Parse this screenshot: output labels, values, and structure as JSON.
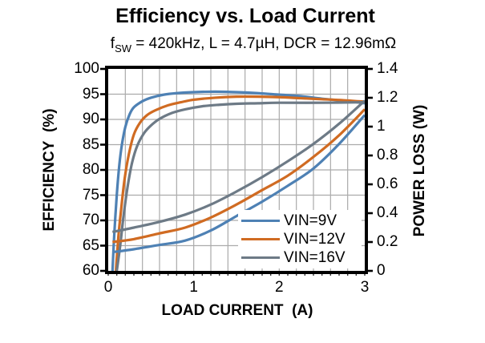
{
  "chart_data": {
    "type": "line",
    "title": "Efficiency vs. Load Current",
    "subtitle": {
      "pre": "f",
      "sub": "SW",
      "post": " = 420kHz, L = 4.7µH, DCR = 12.96mΩ"
    },
    "xlabel": "LOAD CURRENT  (A)",
    "xlim": [
      0,
      3
    ],
    "x_tick_values": [
      0,
      1,
      2,
      3
    ],
    "x_tick_labels": [
      "0",
      "1",
      "2",
      "3"
    ],
    "x_grid_step": 0.2,
    "x_minor_tick_step": 0.1,
    "grid": true,
    "grid_color": "#ABABAB",
    "frame_color": "#000000",
    "left_axis": {
      "label": "EFFICIENCY  (%)",
      "lim": [
        60,
        100
      ],
      "tick_values": [
        60,
        65,
        70,
        75,
        80,
        85,
        90,
        95,
        100
      ],
      "tick_labels": [
        "60",
        "65",
        "70",
        "75",
        "80",
        "85",
        "90",
        "95",
        "100"
      ],
      "grid_step": 5
    },
    "right_axis": {
      "label": "POWER LOSS (W)",
      "lim": [
        0,
        1.4
      ],
      "tick_values": [
        0,
        0.2,
        0.4,
        0.6,
        0.8,
        1.0,
        1.2,
        1.4
      ],
      "tick_labels": [
        "0",
        "0.2",
        "0.4",
        "0.6",
        "0.8",
        "1",
        "1.2",
        "1.4"
      ]
    },
    "legend": {
      "position": "inside-bottom-right",
      "entries": [
        {
          "label": "VIN=9V",
          "color": "#4E81B4"
        },
        {
          "label": "VIN=12V",
          "color": "#D06B22"
        },
        {
          "label": "VIN=16V",
          "color": "#6D7A86"
        }
      ]
    },
    "series": [
      {
        "name": "VIN=9V efficiency",
        "axis": "left",
        "color": "#4E81B4",
        "points": [
          [
            0.05,
            60
          ],
          [
            0.07,
            67
          ],
          [
            0.1,
            75
          ],
          [
            0.13,
            81
          ],
          [
            0.16,
            85
          ],
          [
            0.2,
            88.5
          ],
          [
            0.25,
            91
          ],
          [
            0.3,
            92.4
          ],
          [
            0.4,
            93.6
          ],
          [
            0.5,
            94.3
          ],
          [
            0.65,
            94.9
          ],
          [
            0.8,
            95.2
          ],
          [
            1.0,
            95.4
          ],
          [
            1.25,
            95.5
          ],
          [
            1.5,
            95.4
          ],
          [
            1.75,
            95.2
          ],
          [
            2.0,
            94.9
          ],
          [
            2.25,
            94.6
          ],
          [
            2.5,
            94.1
          ],
          [
            2.75,
            93.7
          ],
          [
            3.0,
            93.2
          ]
        ]
      },
      {
        "name": "VIN=12V efficiency",
        "axis": "left",
        "color": "#D06B22",
        "points": [
          [
            0.09,
            60
          ],
          [
            0.12,
            67
          ],
          [
            0.15,
            72
          ],
          [
            0.19,
            78
          ],
          [
            0.24,
            83
          ],
          [
            0.3,
            87
          ],
          [
            0.37,
            89.3
          ],
          [
            0.45,
            90.8
          ],
          [
            0.55,
            91.8
          ],
          [
            0.7,
            92.8
          ],
          [
            0.85,
            93.4
          ],
          [
            1.0,
            93.9
          ],
          [
            1.25,
            94.3
          ],
          [
            1.5,
            94.5
          ],
          [
            1.75,
            94.5
          ],
          [
            2.0,
            94.4
          ],
          [
            2.25,
            94.2
          ],
          [
            2.5,
            94.0
          ],
          [
            2.75,
            93.8
          ],
          [
            3.0,
            93.5
          ]
        ]
      },
      {
        "name": "VIN=16V efficiency",
        "axis": "left",
        "color": "#6D7A86",
        "points": [
          [
            0.1,
            60
          ],
          [
            0.14,
            65
          ],
          [
            0.18,
            71
          ],
          [
            0.23,
            77
          ],
          [
            0.28,
            81.5
          ],
          [
            0.34,
            84.8
          ],
          [
            0.42,
            87.3
          ],
          [
            0.5,
            88.8
          ],
          [
            0.6,
            90.1
          ],
          [
            0.75,
            91.3
          ],
          [
            0.9,
            92.0
          ],
          [
            1.1,
            92.6
          ],
          [
            1.3,
            92.9
          ],
          [
            1.5,
            93.1
          ],
          [
            1.75,
            93.2
          ],
          [
            2.0,
            93.3
          ],
          [
            2.5,
            93.3
          ],
          [
            3.0,
            93.4
          ]
        ]
      },
      {
        "name": "VIN=9V power loss",
        "axis": "right",
        "color": "#4E81B4",
        "points": [
          [
            0.05,
            0.13
          ],
          [
            0.3,
            0.15
          ],
          [
            0.6,
            0.18
          ],
          [
            0.9,
            0.21
          ],
          [
            1.2,
            0.28
          ],
          [
            1.5,
            0.38
          ],
          [
            1.8,
            0.48
          ],
          [
            2.1,
            0.59
          ],
          [
            2.4,
            0.71
          ],
          [
            2.7,
            0.88
          ],
          [
            3.0,
            1.08
          ]
        ]
      },
      {
        "name": "VIN=12V power loss",
        "axis": "right",
        "color": "#D06B22",
        "points": [
          [
            0.05,
            0.2
          ],
          [
            0.3,
            0.22
          ],
          [
            0.6,
            0.26
          ],
          [
            0.9,
            0.3
          ],
          [
            1.2,
            0.37
          ],
          [
            1.5,
            0.46
          ],
          [
            1.8,
            0.56
          ],
          [
            2.1,
            0.66
          ],
          [
            2.4,
            0.79
          ],
          [
            2.7,
            0.94
          ],
          [
            3.0,
            1.12
          ]
        ]
      },
      {
        "name": "VIN=16V power loss",
        "axis": "right",
        "color": "#6D7A86",
        "points": [
          [
            0.05,
            0.27
          ],
          [
            0.3,
            0.3
          ],
          [
            0.6,
            0.34
          ],
          [
            0.9,
            0.39
          ],
          [
            1.2,
            0.46
          ],
          [
            1.5,
            0.55
          ],
          [
            1.8,
            0.65
          ],
          [
            2.1,
            0.76
          ],
          [
            2.4,
            0.88
          ],
          [
            2.7,
            1.02
          ],
          [
            3.0,
            1.18
          ]
        ]
      }
    ]
  }
}
